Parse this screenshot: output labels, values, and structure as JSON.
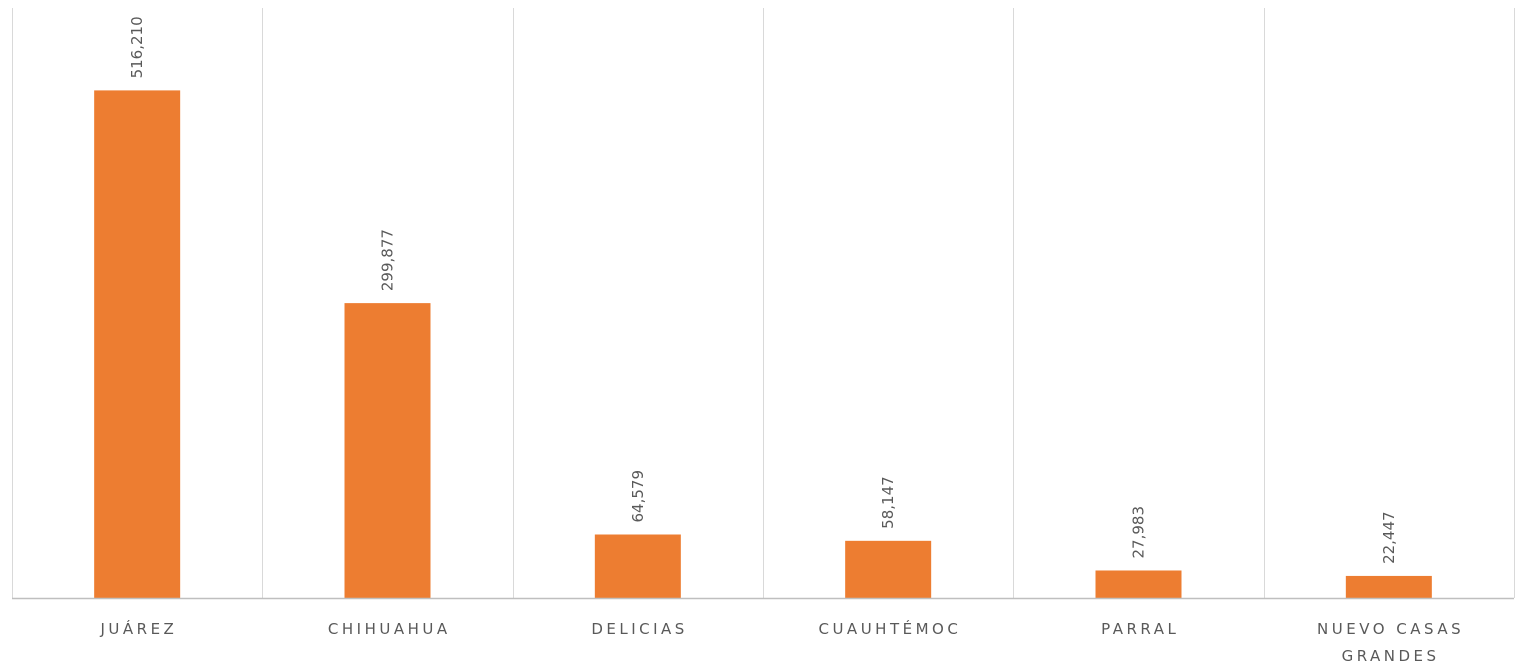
{
  "chart_data": {
    "type": "bar",
    "categories": [
      [
        "JUÁREZ"
      ],
      [
        "CHIHUAHUA"
      ],
      [
        "DELICIAS"
      ],
      [
        "CUAUHTÉMOC"
      ],
      [
        "PARRAL"
      ],
      [
        "NUEVO CASAS",
        "GRANDES"
      ]
    ],
    "values": [
      516210,
      299877,
      64579,
      58147,
      27983,
      22447
    ],
    "value_labels": [
      "516,210",
      "299,877",
      "64,579",
      "58,147",
      "27,983",
      "22,447"
    ],
    "bar_color": "#ED7D31",
    "title": "",
    "xlabel": "",
    "ylabel": "",
    "ylim": [
      0,
      600000
    ],
    "grid": "vertical category separators",
    "legend": "none"
  }
}
